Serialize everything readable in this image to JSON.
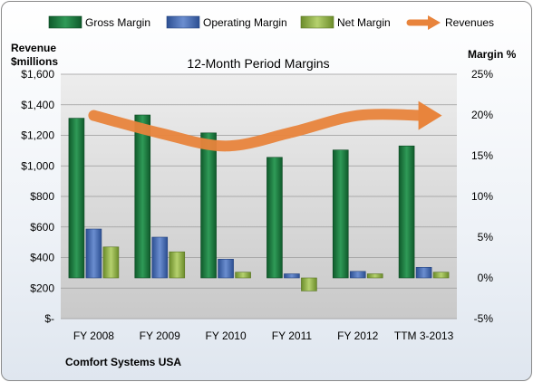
{
  "chart_data": {
    "type": "bar",
    "title": "12-Month Period Margins",
    "company": "Comfort Systems USA",
    "left_axis": {
      "title_lines": [
        "Revenue",
        "$millions"
      ],
      "min": 0,
      "max": 1600,
      "step": 200,
      "tick_labels": [
        "$-",
        "$200",
        "$400",
        "$600",
        "$800",
        "$1,000",
        "$1,200",
        "$1,400",
        "$1,600"
      ]
    },
    "right_axis": {
      "title": "Margin %",
      "min": -5,
      "max": 25,
      "step": 5,
      "tick_labels": [
        "-5%",
        "0%",
        "5%",
        "10%",
        "15%",
        "20%",
        "25%"
      ]
    },
    "categories": [
      "FY 2008",
      "FY 2009",
      "FY 2010",
      "FY 2011",
      "FY 2012",
      "TTM 3-2013"
    ],
    "series": [
      {
        "name": "Gross Margin",
        "axis": "right",
        "color": "#1e7a40",
        "values": [
          19.6,
          20.0,
          17.8,
          14.8,
          15.7,
          16.2
        ]
      },
      {
        "name": "Operating Margin",
        "axis": "right",
        "color": "#4a6fb5",
        "values": [
          6.0,
          5.0,
          2.3,
          0.5,
          0.8,
          1.3
        ]
      },
      {
        "name": "Net Margin",
        "axis": "right",
        "color": "#8fb34a",
        "values": [
          3.8,
          3.2,
          0.7,
          -1.6,
          0.5,
          0.7
        ]
      },
      {
        "name": "Revenues",
        "axis": "left",
        "type": "line",
        "color": "#e8843c",
        "values": [
          1330,
          1215,
          1130,
          1220,
          1330,
          1330
        ]
      }
    ],
    "grid": true,
    "legend_position": "top"
  }
}
